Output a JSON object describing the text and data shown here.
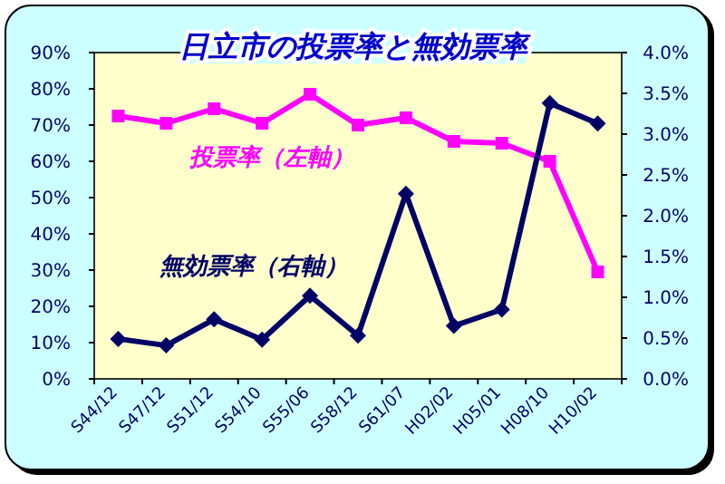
{
  "chart_data": {
    "type": "line",
    "title": "日立市の投票率と無効票率",
    "categories": [
      "S44/12",
      "S47/12",
      "S51/12",
      "S54/10",
      "S55/06",
      "S58/12",
      "S61/07",
      "H02/02",
      "H05/01",
      "H08/10",
      "H10/02"
    ],
    "series": [
      {
        "name": "投票率（左軸）",
        "color": "#ff00ff",
        "marker": "square",
        "values": [
          72.5,
          70.5,
          74.5,
          70.5,
          78.5,
          70,
          72,
          65.5,
          65,
          60,
          29.5
        ]
      },
      {
        "name": "無効票率（右軸）",
        "color": "#000066",
        "marker": "diamond",
        "axis": "y2",
        "values": [
          0.49,
          0.41,
          0.73,
          0.48,
          1.02,
          0.53,
          2.27,
          0.65,
          0.85,
          3.38,
          3.13
        ]
      }
    ],
    "ylim": [
      0,
      90
    ],
    "yticks": [
      {
        "value": 0,
        "label": "0%"
      },
      {
        "value": 10,
        "label": "10%"
      },
      {
        "value": 20,
        "label": "20%"
      },
      {
        "value": 30,
        "label": "30%"
      },
      {
        "value": 40,
        "label": "40%"
      },
      {
        "value": 50,
        "label": "50%"
      },
      {
        "value": 60,
        "label": "60%"
      },
      {
        "value": 70,
        "label": "70%"
      },
      {
        "value": 80,
        "label": "80%"
      },
      {
        "value": 90,
        "label": "90%"
      }
    ],
    "y2lim": [
      0,
      4
    ],
    "y2ticks": [
      {
        "value": 0,
        "label": "0.0%"
      },
      {
        "value": 0.5,
        "label": "0.5%"
      },
      {
        "value": 1,
        "label": "1.0%"
      },
      {
        "value": 1.5,
        "label": "1.5%"
      },
      {
        "value": 2,
        "label": "2.0%"
      },
      {
        "value": 2.5,
        "label": "2.5%"
      },
      {
        "value": 3,
        "label": "3.0%"
      },
      {
        "value": 3.5,
        "label": "3.5%"
      },
      {
        "value": 4,
        "label": "4.0%"
      }
    ],
    "grid": false
  }
}
